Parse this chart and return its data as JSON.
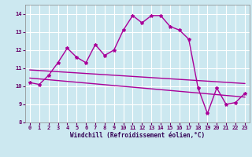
{
  "background_color": "#cce8f0",
  "grid_color": "#ffffff",
  "line_color": "#aa0099",
  "marker": "*",
  "xlabel": "Windchill (Refroidissement éolien,°C)",
  "ylim": [
    8,
    14.5
  ],
  "xlim": [
    -0.5,
    23.5
  ],
  "yticks": [
    8,
    9,
    10,
    11,
    12,
    13,
    14
  ],
  "xticks": [
    0,
    1,
    2,
    3,
    4,
    5,
    6,
    7,
    8,
    9,
    10,
    11,
    12,
    13,
    14,
    15,
    16,
    17,
    18,
    19,
    20,
    21,
    22,
    23
  ],
  "series1_x": [
    0,
    1,
    2,
    3,
    4,
    5,
    6,
    7,
    8,
    9,
    10,
    11,
    12,
    13,
    14,
    15,
    16,
    17,
    18,
    19,
    20,
    21,
    22,
    23
  ],
  "series1_y": [
    10.2,
    10.1,
    10.6,
    11.3,
    12.1,
    11.6,
    11.3,
    12.3,
    11.7,
    12.0,
    13.1,
    13.9,
    13.5,
    13.9,
    13.9,
    13.3,
    13.1,
    12.6,
    9.9,
    8.5,
    9.9,
    9.0,
    9.1,
    9.6
  ],
  "series2_x": [
    0,
    23
  ],
  "series2_y": [
    10.9,
    10.15
  ],
  "series3_x": [
    0,
    23
  ],
  "series3_y": [
    10.45,
    9.4
  ],
  "tick_fontsize": 5,
  "xlabel_fontsize": 5.5,
  "lw": 1.0,
  "ms": 3
}
